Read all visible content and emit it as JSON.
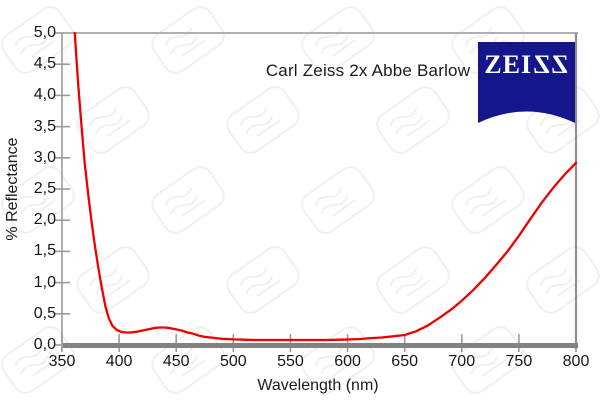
{
  "figure": {
    "title": "Carl Zeiss 2x Abbe Barlow"
  },
  "logo": {
    "text": "ZEISS",
    "color": "#15168c"
  },
  "colors": {
    "curve_red": "#ee0000",
    "logo_blue": "#15168c",
    "axis_gray": "#828282",
    "frame_gray": "#b0b0b0",
    "tick_gray": "#9a9a9a",
    "watermark_gray": "#f0f0f0",
    "text_black": "#1b1b1b"
  },
  "chart_data": {
    "type": "line",
    "title": "Carl Zeiss 2x Abbe Barlow",
    "xlabel": "Wavelength (nm)",
    "ylabel": "% Reflectance",
    "xlim": [
      350,
      800
    ],
    "ylim": [
      0.0,
      5.0
    ],
    "grid": "top-border-only",
    "legend": "none",
    "x_ticks": [
      350,
      400,
      450,
      500,
      550,
      600,
      650,
      700,
      750,
      800
    ],
    "x_tick_labels": [
      "350",
      "400",
      "450",
      "500",
      "550",
      "600",
      "650",
      "700",
      "750",
      "800"
    ],
    "y_ticks": [
      0,
      0.5,
      1,
      1.5,
      2,
      2.5,
      3,
      3.5,
      4,
      4.5,
      5
    ],
    "y_tick_labels": [
      "0,0",
      "0,5",
      "1,0",
      "1,5",
      "2,0",
      "2,5",
      "3,0",
      "3,5",
      "4,0",
      "4,5",
      "5,0"
    ],
    "series": [
      {
        "name": "% Reflectance",
        "color": "#ee0000",
        "x": [
          361.2,
          362.5,
          364,
          366,
          368,
          370,
          373,
          376,
          379,
          382,
          385,
          388,
          391,
          394,
          398,
          402,
          406,
          410,
          415,
          420,
          425,
          430,
          435,
          440,
          445,
          450,
          455,
          460,
          465,
          470,
          475,
          480,
          490,
          500,
          510,
          520,
          535,
          550,
          565,
          580,
          595,
          610,
          620,
          630,
          640,
          650,
          660,
          670,
          680,
          690,
          700,
          710,
          720,
          730,
          740,
          750,
          760,
          770,
          780,
          790,
          800
        ],
        "y": [
          5.0,
          4.62,
          4.22,
          3.75,
          3.3,
          2.9,
          2.4,
          1.96,
          1.57,
          1.21,
          0.9,
          0.62,
          0.43,
          0.31,
          0.24,
          0.21,
          0.2,
          0.2,
          0.21,
          0.23,
          0.25,
          0.27,
          0.28,
          0.28,
          0.27,
          0.25,
          0.23,
          0.2,
          0.18,
          0.15,
          0.13,
          0.12,
          0.1,
          0.09,
          0.085,
          0.08,
          0.08,
          0.08,
          0.08,
          0.08,
          0.085,
          0.095,
          0.11,
          0.12,
          0.14,
          0.16,
          0.22,
          0.31,
          0.43,
          0.56,
          0.71,
          0.88,
          1.07,
          1.28,
          1.5,
          1.75,
          2.02,
          2.28,
          2.52,
          2.73,
          2.92
        ]
      }
    ]
  }
}
